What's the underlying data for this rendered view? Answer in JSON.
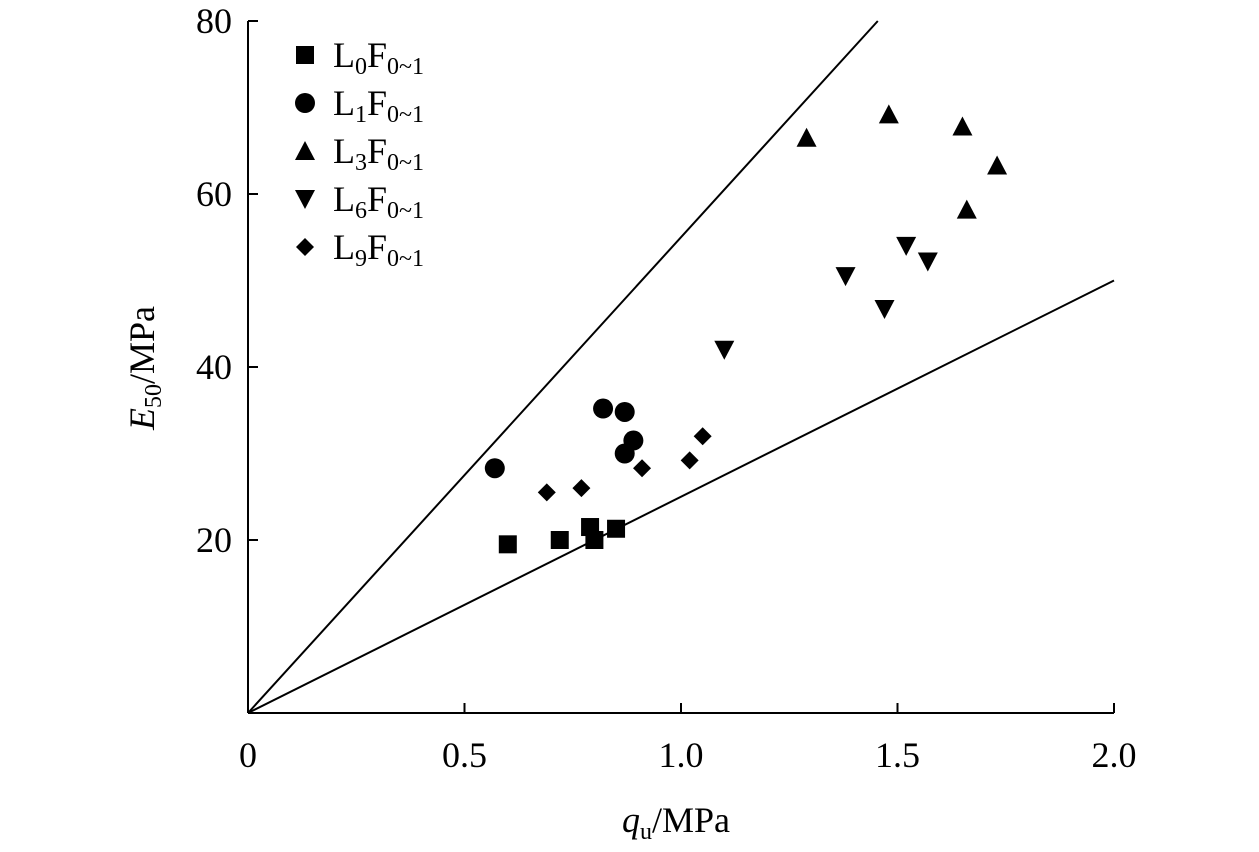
{
  "chart_data": {
    "type": "scatter",
    "title": "",
    "xlabel": {
      "main": "q",
      "sub": "u",
      "unit": "/MPa"
    },
    "ylabel": {
      "main": "E",
      "sub": "50",
      "unit": "/MPa"
    },
    "xlim": [
      0,
      2.0
    ],
    "ylim": [
      0,
      80
    ],
    "x_ticks": [
      0,
      0.5,
      1.0,
      1.5,
      2.0
    ],
    "x_tick_labels": [
      "0",
      "0.5",
      "1.0",
      "1.5",
      "2.0"
    ],
    "y_ticks": [
      20,
      40,
      60,
      80
    ],
    "y_tick_labels": [
      "20",
      "40",
      "60",
      "80"
    ],
    "grid": false,
    "legend_position": "top-left",
    "series": [
      {
        "label": {
          "a": "L",
          "a_sub": "0",
          "b": "F",
          "b_sub": "0~1"
        },
        "marker": "square",
        "points": [
          [
            0.6,
            19.5
          ],
          [
            0.72,
            20.0
          ],
          [
            0.79,
            21.5
          ],
          [
            0.8,
            20.0
          ],
          [
            0.85,
            21.3
          ]
        ]
      },
      {
        "label": {
          "a": "L",
          "a_sub": "1",
          "b": "F",
          "b_sub": "0~1"
        },
        "marker": "circle",
        "points": [
          [
            0.57,
            28.3
          ],
          [
            0.82,
            35.2
          ],
          [
            0.87,
            34.8
          ],
          [
            0.89,
            31.5
          ],
          [
            0.87,
            30.0
          ]
        ]
      },
      {
        "label": {
          "a": "L",
          "a_sub": "3",
          "b": "F",
          "b_sub": "0~1"
        },
        "marker": "triangle-up",
        "points": [
          [
            1.29,
            66.5
          ],
          [
            1.48,
            69.2
          ],
          [
            1.65,
            67.8
          ],
          [
            1.73,
            63.3
          ],
          [
            1.66,
            58.2
          ]
        ]
      },
      {
        "label": {
          "a": "L",
          "a_sub": "6",
          "b": "F",
          "b_sub": "0~1"
        },
        "marker": "triangle-down",
        "points": [
          [
            1.1,
            42.0
          ],
          [
            1.38,
            50.5
          ],
          [
            1.47,
            46.7
          ],
          [
            1.52,
            54.0
          ],
          [
            1.57,
            52.2
          ]
        ]
      },
      {
        "label": {
          "a": "L",
          "a_sub": "9",
          "b": "F",
          "b_sub": "0~1"
        },
        "marker": "diamond",
        "points": [
          [
            0.69,
            25.5
          ],
          [
            0.77,
            26.0
          ],
          [
            0.91,
            28.3
          ],
          [
            1.02,
            29.2
          ],
          [
            1.05,
            32.0
          ]
        ]
      }
    ],
    "reference_lines": [
      {
        "slope": 55,
        "from": [
          0,
          0
        ],
        "to": [
          1.4545,
          80
        ]
      },
      {
        "slope": 25,
        "from": [
          0,
          0
        ],
        "to": [
          2.0,
          50
        ]
      }
    ]
  }
}
